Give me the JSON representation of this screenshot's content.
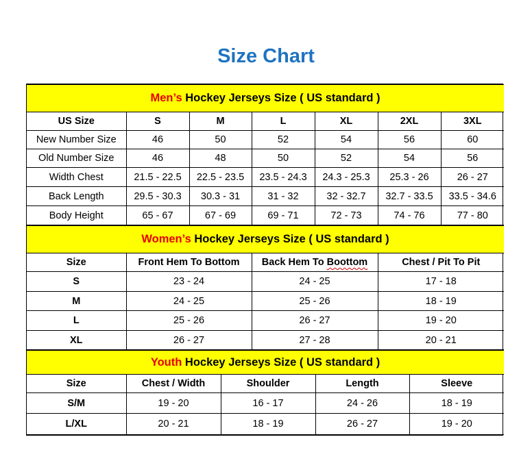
{
  "title": "Size Chart",
  "sections": [
    {
      "highlight": "Men’s",
      "heading": " Hockey Jerseys Size ( US standard )",
      "columns": [
        "US Size",
        "S",
        "M",
        "L",
        "XL",
        "2XL",
        "3XL"
      ],
      "rows": [
        [
          "New Number Size",
          "46",
          "50",
          "52",
          "54",
          "56",
          "60"
        ],
        [
          "Old Number Size",
          "46",
          "48",
          "50",
          "52",
          "54",
          "56"
        ],
        [
          "Width Chest",
          "21.5 - 22.5",
          "22.5 - 23.5",
          "23.5 - 24.3",
          "24.3 - 25.3",
          "25.3 - 26",
          "26 - 27"
        ],
        [
          "Back Length",
          "29.5 - 30.3",
          "30.3 - 31",
          "31 - 32",
          "32 - 32.7",
          "32.7 - 33.5",
          "33.5 - 34.6"
        ],
        [
          "Body Height",
          "65 - 67",
          "67 - 69",
          "69 - 71",
          "72 - 73",
          "74 - 76",
          "77 - 80"
        ]
      ]
    },
    {
      "highlight": "Women’s",
      "heading": " Hockey Jerseys Size ( US standard )",
      "columns": [
        "Size",
        "Front Hem To Bottom",
        "Back Hem To Boottom",
        "Chest / Pit To Pit"
      ],
      "rows": [
        [
          "S",
          "23 - 24",
          "24 - 25",
          "17 - 18"
        ],
        [
          "M",
          "24 - 25",
          "25 - 26",
          "18 - 19"
        ],
        [
          "L",
          "25 - 26",
          "26 - 27",
          "19 - 20"
        ],
        [
          "XL",
          "26 - 27",
          "27 - 28",
          "20 - 21"
        ]
      ]
    },
    {
      "highlight": "Youth",
      "heading": " Hockey Jerseys Size ( US standard )",
      "columns": [
        "Size",
        "Chest / Width",
        "Shoulder",
        "Length",
        "Sleeve"
      ],
      "rows": [
        [
          "S/M",
          "19 - 20",
          "16 - 17",
          "24 - 26",
          "18 - 19"
        ],
        [
          "L/XL",
          "20 - 21",
          "18 - 19",
          "26 - 27",
          "19 - 20"
        ]
      ]
    }
  ],
  "colors": {
    "title": "#1f73c0",
    "band": "#ffff00",
    "highlight": "#e60000"
  }
}
